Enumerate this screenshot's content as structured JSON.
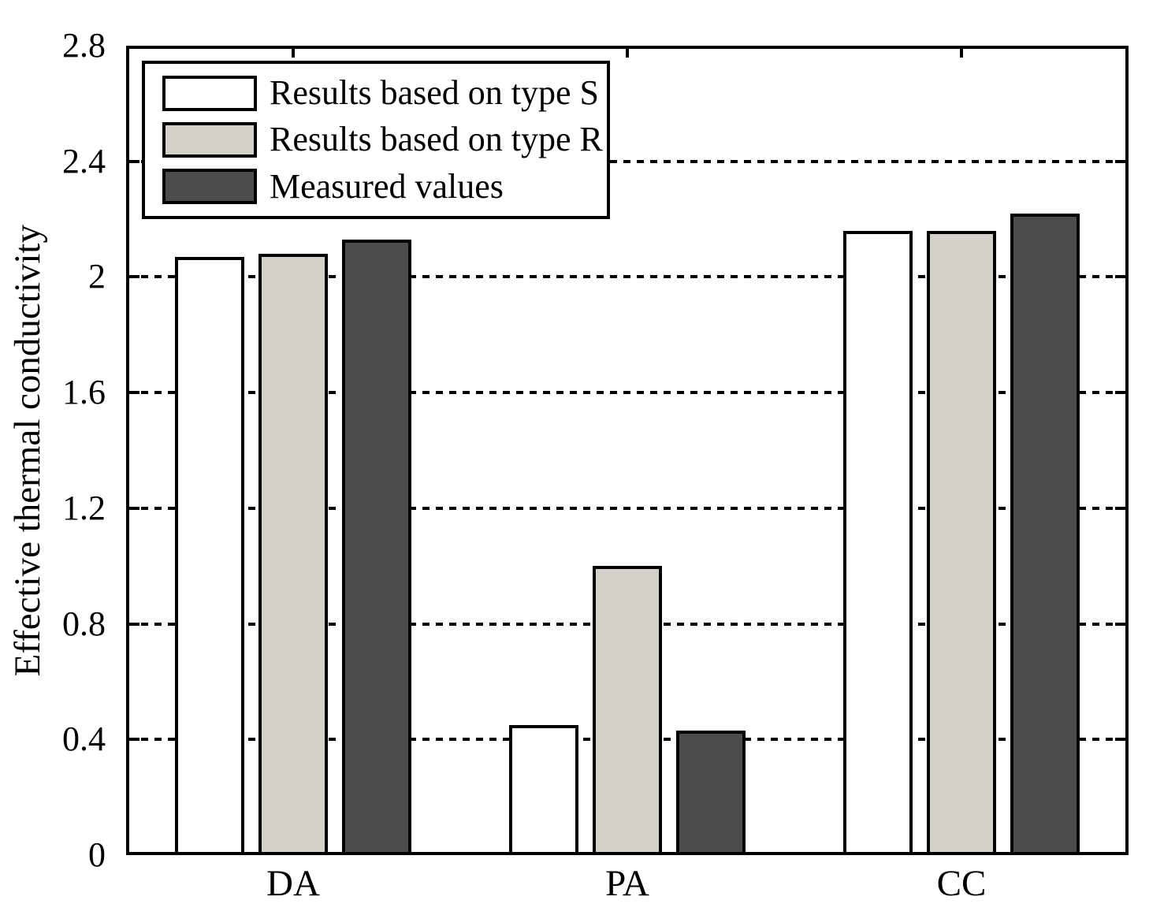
{
  "figure": {
    "background_color": "#ffffff",
    "axis_color": "#000000"
  },
  "chart_data": {
    "type": "bar",
    "title": "",
    "xlabel": "",
    "ylabel": "Effective thermal conductivity",
    "categories": [
      "DA",
      "PA",
      "CC"
    ],
    "series": [
      {
        "name": "Results based on type S",
        "color": "#ffffff",
        "values": [
          2.07,
          0.45,
          2.16
        ]
      },
      {
        "name": "Results based on type R",
        "color": "#d3cfc9",
        "values": [
          2.08,
          1.0,
          2.16
        ]
      },
      {
        "name": "Measured values",
        "color": "#4d4d4d",
        "values": [
          2.13,
          0.43,
          2.22
        ]
      }
    ],
    "ylim": [
      0,
      2.8
    ],
    "yticks": [
      {
        "value": 0,
        "label": "0"
      },
      {
        "value": 0.4,
        "label": "0.4"
      },
      {
        "value": 0.8,
        "label": "0.8"
      },
      {
        "value": 1.2,
        "label": "1.2"
      },
      {
        "value": 1.6,
        "label": "1.6"
      },
      {
        "value": 2,
        "label": "2"
      },
      {
        "value": 2.4,
        "label": "2.4"
      },
      {
        "value": 2.8,
        "label": "2.8"
      }
    ],
    "gridline_values": [
      0.4,
      0.8,
      1.2,
      1.6,
      2.0,
      2.4
    ],
    "grid_style": "dotted",
    "legend_position": "top-left",
    "bar_border_color": "#000000"
  }
}
